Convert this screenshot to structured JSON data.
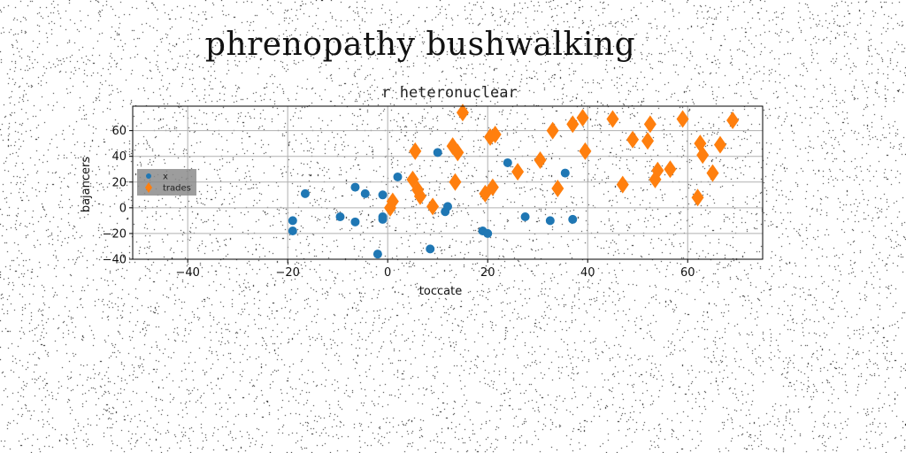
{
  "page": {
    "title": "phrenopathy bushwalking"
  },
  "chart_data": {
    "type": "scatter",
    "title": "r heteronuclear",
    "xlabel": "toccate",
    "ylabel": "bajancers",
    "xlim": [
      -51,
      75
    ],
    "ylim": [
      -40,
      79
    ],
    "xticks": [
      -40,
      -20,
      0,
      20,
      40,
      60
    ],
    "yticks": [
      -40,
      -20,
      0,
      20,
      40,
      60
    ],
    "grid": true,
    "legend_position": "center-left",
    "series": [
      {
        "name": "x",
        "marker": "circle",
        "color": "#1f77b4",
        "points": [
          [
            -19,
            -10
          ],
          [
            -19,
            -18
          ],
          [
            -16.5,
            11
          ],
          [
            -9.5,
            -7
          ],
          [
            -6.5,
            -11
          ],
          [
            -6.5,
            16
          ],
          [
            -4.5,
            11
          ],
          [
            -2,
            -36
          ],
          [
            -1,
            -7
          ],
          [
            -1,
            -9
          ],
          [
            -1,
            10
          ],
          [
            2,
            24
          ],
          [
            8.5,
            -32
          ],
          [
            10,
            43
          ],
          [
            11.5,
            -3
          ],
          [
            12,
            1
          ],
          [
            19,
            -18
          ],
          [
            20,
            -20
          ],
          [
            24,
            35
          ],
          [
            27.5,
            -7
          ],
          [
            32.5,
            -10
          ],
          [
            35.5,
            27
          ],
          [
            37,
            -9
          ]
        ]
      },
      {
        "name": "trades",
        "marker": "diamond",
        "color": "#ff7f0e",
        "points": [
          [
            0.5,
            0
          ],
          [
            1,
            5
          ],
          [
            5,
            22
          ],
          [
            5.5,
            44
          ],
          [
            6,
            14
          ],
          [
            6.5,
            9
          ],
          [
            9,
            1
          ],
          [
            13,
            48
          ],
          [
            13.5,
            20
          ],
          [
            14,
            43
          ],
          [
            15,
            74
          ],
          [
            19.5,
            11
          ],
          [
            20.5,
            55
          ],
          [
            21,
            16
          ],
          [
            21.5,
            57
          ],
          [
            26,
            28
          ],
          [
            30.5,
            37
          ],
          [
            33,
            60
          ],
          [
            34,
            15
          ],
          [
            37,
            65
          ],
          [
            39,
            70
          ],
          [
            39.5,
            44
          ],
          [
            45,
            69
          ],
          [
            47,
            18
          ],
          [
            49,
            53
          ],
          [
            52,
            52
          ],
          [
            52.5,
            65
          ],
          [
            53.5,
            22
          ],
          [
            54,
            29
          ],
          [
            56.5,
            30
          ],
          [
            59,
            69
          ],
          [
            62,
            8
          ],
          [
            62.5,
            50
          ],
          [
            63,
            41
          ],
          [
            65,
            27
          ],
          [
            66.5,
            49
          ],
          [
            69,
            68
          ]
        ]
      }
    ]
  }
}
